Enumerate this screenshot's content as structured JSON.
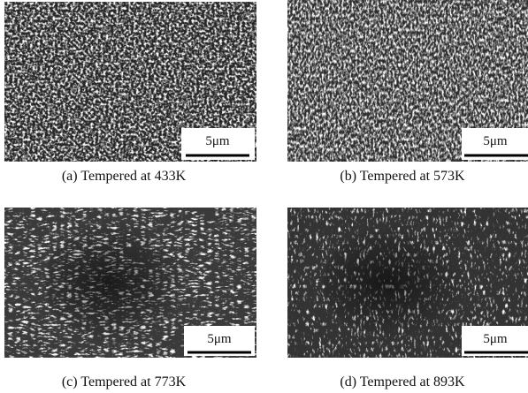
{
  "figure": {
    "panels": [
      {
        "caption": "(a) Tempered at 433K",
        "scale_bar": "5μm"
      },
      {
        "caption": "(b) Tempered at 573K",
        "scale_bar": "5μm"
      },
      {
        "caption": "(c) Tempered at 773K",
        "scale_bar": "5μm"
      },
      {
        "caption": "(d) Tempered at 893K",
        "scale_bar": "5μm"
      }
    ]
  }
}
